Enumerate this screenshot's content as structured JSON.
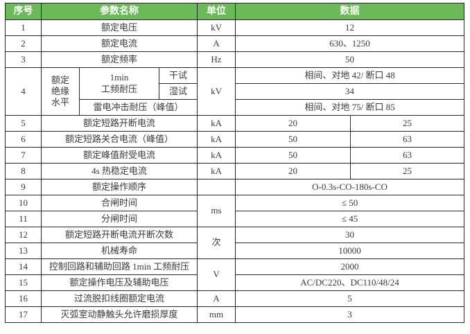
{
  "colors": {
    "header_bg": "#6ABB58",
    "header_text": "#FFFFFF",
    "body_text": "#3A3A3A",
    "border": "#262626"
  },
  "table": {
    "header": {
      "no": "序号",
      "name": "参数名称",
      "unit": "单位",
      "data": "数据"
    },
    "rows": [
      {
        "no": "1",
        "name": "额定电压",
        "unit": "kV",
        "data": "12"
      },
      {
        "no": "2",
        "name": "额定电流",
        "unit": "A",
        "data": "630、1250"
      },
      {
        "no": "3",
        "name": "额定频率",
        "unit": "Hz",
        "data": "50"
      },
      {
        "no": "4",
        "name_group": "额定\n绝缘\n水平",
        "name_sub": "1min\n工频耐压",
        "dry_label": "干试",
        "wet_label": "湿试",
        "lightning_label": "雷电冲击耐压（峰值）",
        "unit": "kV",
        "data_dry": "相间、对地 42/ 断口 48",
        "data_wet": "34",
        "data_lightning": "相间、对地 75/ 断口 85"
      },
      {
        "no": "5",
        "name": "额定短路开断电流",
        "unit": "kA",
        "data1": "20",
        "data2": "25"
      },
      {
        "no": "6",
        "name": "额定短路关合电流（峰值）",
        "unit": "kA",
        "data1": "50",
        "data2": "63"
      },
      {
        "no": "7",
        "name": "额定峰值耐受电流",
        "unit": "kA",
        "data1": "50",
        "data2": "63"
      },
      {
        "no": "8",
        "name": "4s 热稳定电流",
        "unit": "kA",
        "data1": "20",
        "data2": "25"
      },
      {
        "no": "9",
        "name": "额定操作顺序",
        "unit": "",
        "data": "O-0.3s-CO-180s-CO"
      },
      {
        "no": "10",
        "name": "合闸时间",
        "unit": "ms",
        "data": "≤ 50"
      },
      {
        "no": "11",
        "name": "分闸时间",
        "data": "≤ 45"
      },
      {
        "no": "12",
        "name": "额定短路开断电流开断次数",
        "unit": "次",
        "data": "30"
      },
      {
        "no": "13",
        "name": "机械寿命",
        "data": "10000"
      },
      {
        "no": "14",
        "name": "控制回路和辅助回路 1min 工频耐压",
        "unit": "V",
        "data": "2000"
      },
      {
        "no": "15",
        "name": "额定操作电压及辅助电压",
        "data": "AC/DC220、DC110/48/24"
      },
      {
        "no": "16",
        "name": "过流脱扣线圈额定电流",
        "unit": "A",
        "data": "5"
      },
      {
        "no": "17",
        "name": "灭弧室动静触头允许磨损厚度",
        "unit": "mm",
        "data": "3"
      }
    ]
  }
}
